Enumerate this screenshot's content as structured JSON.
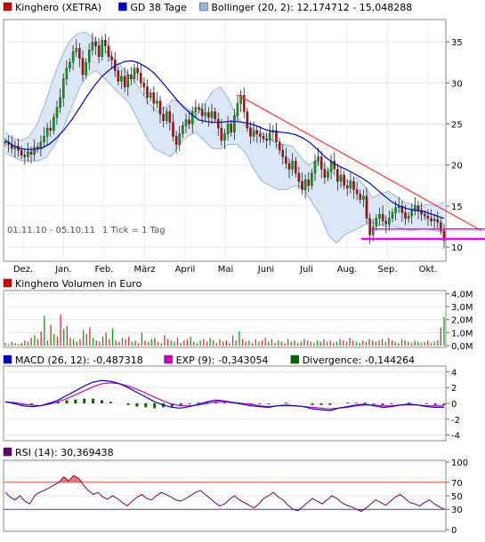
{
  "chart_data": [
    {
      "type": "candlestick",
      "panel": "price",
      "legend": [
        {
          "label": "Kinghero (XETRA)",
          "color": "#d40000"
        },
        {
          "label": "GD 38 Tage",
          "color": "#0000cc"
        },
        {
          "label": "Bollinger (20, 2): 12,174712 - 15,048288",
          "color": "#99b4dd"
        }
      ],
      "date_range": "01.11.10 - 05.10.11",
      "tick_note": "1 Tick = 1 Tag",
      "months": [
        "Dez.",
        "Jan.",
        "Feb.",
        "März",
        "April",
        "Mai",
        "Juni",
        "Juli",
        "Aug.",
        "Sep.",
        "Okt."
      ],
      "y_ticks": [
        "35",
        "30",
        "25",
        "20",
        "15",
        "10"
      ],
      "y_range": [
        8.5,
        37.5
      ],
      "close": [
        22.8,
        22.5,
        22.0,
        22.3,
        21.8,
        21.2,
        21.0,
        21.6,
        21.3,
        22.2,
        22.0,
        22.8,
        23.5,
        24.5,
        24.2,
        25.8,
        27.0,
        28.2,
        30.5,
        31.8,
        32.5,
        33.8,
        34.2,
        33.0,
        31.0,
        32.5,
        34.0,
        35.0,
        34.5,
        33.2,
        35.2,
        34.5,
        33.2,
        32.8,
        31.5,
        30.2,
        30.8,
        29.5,
        31.0,
        30.5,
        31.8,
        31.2,
        30.0,
        29.5,
        28.2,
        28.8,
        27.5,
        27.8,
        26.2,
        25.4,
        26.5,
        25.2,
        23.5,
        22.5,
        23.8,
        24.8,
        25.5,
        25.0,
        26.5,
        27.0,
        26.8,
        26.0,
        26.4,
        25.8,
        26.5,
        25.6,
        24.5,
        23.0,
        23.8,
        25.0,
        24.0,
        26.0,
        27.5,
        28.5,
        26.5,
        24.5,
        23.5,
        24.2,
        23.8,
        23.5,
        23.2,
        23.0,
        24.0,
        24.2,
        22.8,
        21.8,
        21.0,
        20.2,
        19.5,
        20.5,
        19.0,
        18.0,
        17.0,
        18.2,
        17.5,
        19.0,
        20.5,
        21.0,
        19.5,
        18.5,
        19.2,
        20.5,
        19.5,
        18.0,
        18.8,
        17.5,
        17.2,
        18.0,
        17.0,
        16.5,
        15.8,
        16.2,
        13.5,
        11.5,
        12.5,
        13.5,
        14.0,
        13.2,
        12.8,
        13.5,
        14.2,
        14.8,
        15.0,
        14.2,
        13.5,
        13.8,
        14.5,
        15.0,
        14.5,
        14.0,
        13.8,
        13.5,
        13.2,
        13.4,
        13.0,
        12.0,
        10.8
      ],
      "sma38": [
        23.0,
        22.4,
        22.0,
        21.9,
        21.9,
        22.1,
        22.6,
        23.4,
        24.4,
        25.6,
        27.0,
        28.4,
        29.7,
        30.8,
        31.6,
        32.2,
        32.6,
        32.7,
        32.4,
        31.9,
        31.2,
        30.2,
        29.1,
        28.0,
        27.0,
        26.2,
        25.5,
        25.3,
        25.2,
        25.2,
        25.3,
        25.3,
        25.2,
        25.0,
        24.7,
        24.3,
        24.1,
        24.0,
        23.9,
        23.7,
        23.3,
        22.7,
        21.9,
        21.0,
        20.3,
        19.8,
        19.4,
        18.9,
        18.4,
        17.8,
        17.0,
        16.2,
        15.5,
        15.0,
        14.7,
        14.5,
        14.4,
        14.1,
        13.8,
        13.5
      ],
      "bollinger_upper": [
        24.0,
        23.2,
        23.0,
        23.5,
        25.0,
        27.5,
        30.5,
        33.0,
        35.0,
        36.0,
        36.2,
        35.5,
        34.5,
        33.5,
        32.5,
        31.5,
        30.5,
        29.0,
        27.5,
        26.5,
        27.0,
        28.0,
        27.5,
        26.8,
        26.2,
        27.5,
        29.0,
        29.5,
        28.0,
        26.0,
        24.8,
        24.5,
        24.0,
        23.5,
        22.5,
        22.5,
        22.3,
        21.0,
        20.0,
        20.5,
        20.0,
        19.0,
        18.5,
        18.0,
        18.5,
        17.5,
        16.0,
        16.5,
        16.8,
        16.2,
        15.5,
        15.2,
        15.0,
        15.2,
        15.0,
        15.5
      ],
      "bollinger_lower": [
        21.5,
        21.0,
        20.5,
        20.5,
        20.5,
        21.0,
        22.5,
        24.5,
        27.0,
        29.5,
        31.0,
        31.5,
        30.5,
        29.5,
        28.5,
        27.5,
        25.5,
        23.5,
        22.0,
        21.5,
        21.0,
        22.5,
        23.5,
        24.0,
        23.0,
        22.0,
        22.0,
        22.5,
        22.5,
        21.5,
        19.5,
        18.0,
        17.5,
        17.0,
        17.0,
        17.5,
        17.2,
        15.5,
        14.0,
        11.5,
        10.5,
        11.5,
        12.0,
        12.5,
        13.0,
        12.8,
        12.5,
        12.5,
        12.3,
        12.0,
        12.2,
        12.2,
        12.0,
        11.8
      ],
      "annotations": [
        {
          "kind": "trendline",
          "from": 28.5,
          "to": 12.0,
          "color": "#ff3333"
        },
        {
          "kind": "support",
          "value": 12.2,
          "color": "#ff00ff"
        },
        {
          "kind": "support",
          "value": 11.0,
          "color": "#ff00ff"
        }
      ]
    },
    {
      "type": "bar",
      "panel": "volume",
      "legend": [
        {
          "label": "Kinghero Volumen in Euro",
          "color": "#d40000"
        }
      ],
      "y_ticks": [
        "4,0M",
        "3,0M",
        "2,0M",
        "1,0M",
        "0,0M"
      ],
      "y_range": [
        0,
        4.1
      ],
      "values": [
        0.2,
        0.1,
        0.3,
        0.2,
        0.1,
        0.2,
        0.4,
        0.3,
        0.6,
        0.8,
        0.5,
        1.1,
        2.3,
        0.4,
        1.6,
        0.9,
        0.7,
        2.4,
        1.3,
        1.5,
        0.6,
        0.5,
        0.3,
        0.5,
        1.2,
        0.9,
        1.4,
        0.6,
        0.4,
        0.3,
        0.7,
        1.0,
        0.5,
        1.3,
        0.4,
        0.3,
        0.6,
        0.5,
        0.7,
        0.3,
        0.4,
        0.2,
        1.0,
        0.4,
        0.3,
        0.5,
        0.6,
        0.3,
        0.2,
        0.8,
        0.5,
        0.4,
        0.3,
        0.6,
        0.2,
        0.4,
        0.5,
        0.7,
        0.3,
        0.2,
        0.4,
        0.5,
        0.3,
        0.6,
        0.4,
        0.2,
        0.5,
        0.3,
        0.4,
        0.2,
        0.8,
        0.4,
        1.1,
        0.5,
        0.3,
        0.4,
        0.2,
        0.5,
        0.3,
        0.4,
        0.6,
        0.3,
        0.5,
        0.2,
        0.4,
        0.3,
        0.2,
        0.5,
        0.3,
        0.4,
        0.2,
        0.3,
        0.5,
        0.4,
        0.3,
        0.2,
        0.4,
        0.3,
        0.5,
        0.3,
        0.4,
        0.2,
        0.3,
        0.5,
        0.4,
        0.3,
        0.6,
        0.4,
        0.3,
        0.2,
        0.4,
        0.3,
        0.5,
        0.4,
        0.3,
        0.4,
        0.5,
        0.3,
        0.6,
        0.4,
        0.3,
        0.2,
        0.5,
        0.4,
        0.3,
        0.2,
        0.4,
        0.3,
        0.2,
        0.3,
        0.4,
        0.2,
        0.3,
        0.4,
        1.4,
        2.2
      ]
    },
    {
      "type": "line",
      "panel": "macd",
      "legend": [
        {
          "label": "MACD (26, 12): -0,487318",
          "color": "#0000cc"
        },
        {
          "label": "EXP (9): -0,343054",
          "color": "#cc00cc"
        },
        {
          "label": "Divergence: -0,144264",
          "color": "#006600"
        }
      ],
      "y_ticks": [
        "4",
        "2",
        "0",
        "-2",
        "-4"
      ],
      "y_range": [
        -4.5,
        4.5
      ],
      "macd": [
        0.2,
        0.0,
        -0.3,
        -0.4,
        -0.3,
        0.0,
        0.4,
        1.0,
        1.6,
        2.2,
        2.7,
        2.9,
        2.8,
        2.5,
        2.0,
        1.4,
        0.8,
        0.2,
        -0.2,
        -0.5,
        -0.6,
        -0.4,
        -0.1,
        0.2,
        0.4,
        0.3,
        0.1,
        -0.1,
        -0.3,
        -0.4,
        -0.5,
        -0.3,
        -0.2,
        -0.3,
        -0.4,
        -0.7,
        -0.8,
        -0.9,
        -0.6,
        -0.4,
        -0.2,
        -0.1,
        -0.3,
        -0.5,
        -0.4,
        -0.2,
        -0.1,
        -0.2,
        -0.4,
        -0.5,
        -0.5
      ],
      "signal": [
        0.2,
        0.1,
        -0.1,
        -0.2,
        -0.3,
        -0.1,
        0.2,
        0.6,
        1.1,
        1.6,
        2.1,
        2.5,
        2.6,
        2.5,
        2.2,
        1.8,
        1.3,
        0.8,
        0.3,
        -0.1,
        -0.3,
        -0.3,
        -0.2,
        0.0,
        0.2,
        0.2,
        0.1,
        0.0,
        -0.1,
        -0.3,
        -0.4,
        -0.3,
        -0.3,
        -0.3,
        -0.4,
        -0.5,
        -0.6,
        -0.7,
        -0.6,
        -0.5,
        -0.3,
        -0.2,
        -0.2,
        -0.3,
        -0.3,
        -0.2,
        -0.2,
        -0.2,
        -0.3,
        -0.3,
        -0.3
      ],
      "divergence": [
        0.0,
        -0.1,
        -0.2,
        -0.2,
        0.0,
        0.1,
        0.2,
        0.4,
        0.5,
        0.6,
        0.6,
        0.4,
        0.2,
        0.0,
        -0.2,
        -0.4,
        -0.5,
        -0.6,
        -0.5,
        -0.4,
        -0.3,
        -0.1,
        0.1,
        0.2,
        0.2,
        0.1,
        0.0,
        -0.1,
        -0.2,
        -0.1,
        -0.1,
        0.0,
        0.1,
        0.0,
        0.0,
        -0.2,
        -0.2,
        -0.2,
        0.0,
        0.1,
        0.1,
        0.1,
        -0.1,
        -0.2,
        -0.1,
        0.0,
        0.1,
        0.0,
        -0.1,
        -0.2,
        -0.2
      ]
    },
    {
      "type": "line",
      "panel": "rsi",
      "legend": [
        {
          "label": "RSI (14): 30,369438",
          "color": "#660066"
        }
      ],
      "y_ticks": [
        "100",
        "70",
        "50",
        "30",
        "0"
      ],
      "y_range": [
        0,
        100
      ],
      "levels": [
        70,
        30
      ],
      "values": [
        55,
        48,
        44,
        50,
        42,
        38,
        50,
        55,
        58,
        62,
        66,
        70,
        78,
        72,
        80,
        76,
        66,
        58,
        52,
        55,
        48,
        45,
        50,
        46,
        40,
        35,
        42,
        48,
        52,
        46,
        44,
        50,
        55,
        52,
        48,
        44,
        42,
        46,
        50,
        55,
        58,
        52,
        46,
        40,
        35,
        38,
        45,
        50,
        44,
        40,
        36,
        32,
        38,
        46,
        50,
        55,
        48,
        44,
        36,
        30,
        28,
        34,
        40,
        46,
        42,
        38,
        44,
        50,
        46,
        40,
        36,
        34,
        30,
        27,
        32,
        38,
        44,
        40,
        36,
        42,
        48,
        52,
        46,
        40,
        38,
        35,
        40,
        44,
        38,
        34,
        30
      ]
    }
  ]
}
